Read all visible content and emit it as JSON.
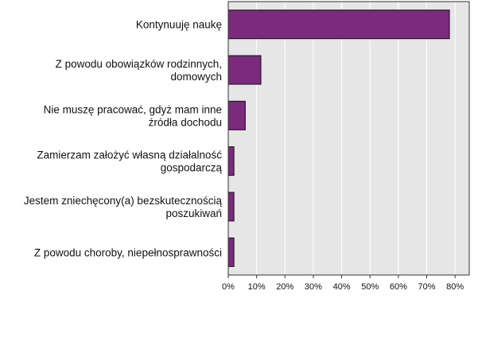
{
  "chart_data": {
    "type": "bar",
    "orientation": "horizontal",
    "categories": [
      [
        "Kontynuuję naukę"
      ],
      [
        "Z powodu obowiązków rodzinnych,",
        "domowych"
      ],
      [
        "Nie muszę pracować, gdyż mam inne",
        "źródła dochodu"
      ],
      [
        "Zamierzam założyć własną działalność",
        "gospodarczą"
      ],
      [
        "Jestem zniechęcony(a) bezskutecznością",
        "poszukiwań"
      ],
      [
        "Z powodu choroby, niepełnosprawności"
      ]
    ],
    "values": [
      78,
      11.5,
      6,
      2,
      2,
      2
    ],
    "xlim": [
      0,
      85
    ],
    "xticks": [
      0,
      10,
      20,
      30,
      40,
      50,
      60,
      70,
      80
    ],
    "tick_suffix": "%",
    "grid": "vertical",
    "bar_color": "#7B2A7E",
    "bar_edge_color": "#111111",
    "plot_background": "#E6E6E6",
    "title": "",
    "xlabel": "",
    "ylabel": ""
  }
}
